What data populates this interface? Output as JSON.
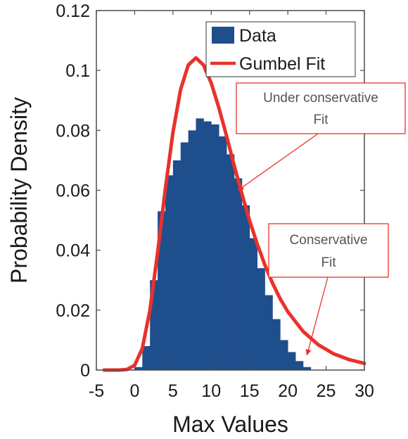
{
  "chart_data": {
    "type": "bar",
    "xlabel": "Max Values",
    "ylabel": "Probability Density",
    "xlim": [
      -5,
      30
    ],
    "ylim": [
      0,
      0.12
    ],
    "xticks": [
      "-5",
      "0",
      "5",
      "10",
      "15",
      "20",
      "25",
      "30"
    ],
    "yticks": [
      "0",
      "0.02",
      "0.04",
      "0.06",
      "0.08",
      "0.1",
      "0.12"
    ],
    "grid": false,
    "legend_position": "top-right",
    "legend": [
      {
        "label": "Data",
        "kind": "bar",
        "color": "#1f4e8c"
      },
      {
        "label": "Gumbel Fit",
        "kind": "line",
        "color": "#e8322b"
      }
    ],
    "series": [
      {
        "name": "Data",
        "kind": "histogram",
        "color": "#1f4e8c",
        "bin_centers": [
          0.5,
          1.5,
          2.5,
          3.5,
          4.5,
          5.5,
          6.5,
          7.5,
          8.5,
          9.5,
          10.5,
          11.5,
          12.5,
          13.5,
          14.5,
          15.5,
          16.5,
          17.5,
          18.5,
          19.5,
          20.5,
          21.5,
          22.5
        ],
        "values": [
          0.001,
          0.008,
          0.03,
          0.053,
          0.065,
          0.07,
          0.076,
          0.08,
          0.084,
          0.083,
          0.082,
          0.078,
          0.072,
          0.064,
          0.055,
          0.044,
          0.034,
          0.025,
          0.017,
          0.01,
          0.006,
          0.003,
          0.001
        ]
      },
      {
        "name": "Gumbel Fit",
        "kind": "line",
        "color": "#e8322b",
        "x": [
          -4,
          -2,
          -1,
          0,
          1,
          2,
          3,
          4,
          5,
          6,
          7,
          8,
          9,
          10,
          11,
          12,
          13,
          14,
          15,
          16,
          17,
          18,
          19,
          20,
          22,
          24,
          26,
          28,
          30
        ],
        "y": [
          0,
          0,
          0.0002,
          0.0016,
          0.0072,
          0.0201,
          0.0393,
          0.0604,
          0.0794,
          0.0936,
          0.1018,
          0.1042,
          0.1018,
          0.0958,
          0.0875,
          0.0781,
          0.0683,
          0.0589,
          0.05,
          0.0421,
          0.0351,
          0.029,
          0.0238,
          0.0195,
          0.0129,
          0.0084,
          0.0054,
          0.0035,
          0.0022
        ]
      }
    ],
    "annotations": [
      {
        "lines": [
          "Under conservative",
          "Fit"
        ],
        "point_x": 13.5,
        "point_y": 0.06
      },
      {
        "lines": [
          "Conservative",
          "Fit"
        ],
        "point_x": 22.5,
        "point_y": 0.005
      }
    ]
  }
}
